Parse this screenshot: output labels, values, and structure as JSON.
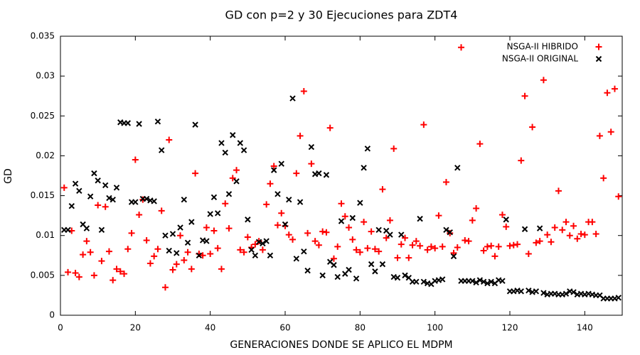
{
  "chart_data": {
    "type": "scatter",
    "title": "GD con p=2 y 30 Ejecuciones para ZDT4",
    "x_label": "GENERACIONES DONDE SE APLICO EL MDPM",
    "y_label": "GD",
    "xlim": [
      0,
      150
    ],
    "ylim": [
      0,
      0.035
    ],
    "xticks": [
      0,
      20,
      40,
      60,
      80,
      100,
      120,
      140
    ],
    "yticks": [
      0,
      0.005,
      0.01,
      0.015,
      0.02,
      0.025,
      0.03,
      0.035
    ],
    "grid": false,
    "legend": "top-right",
    "x": [
      1,
      2,
      3,
      4,
      5,
      6,
      7,
      8,
      9,
      10,
      11,
      12,
      13,
      14,
      15,
      16,
      17,
      18,
      19,
      20,
      21,
      22,
      23,
      24,
      25,
      26,
      27,
      28,
      29,
      30,
      31,
      32,
      33,
      34,
      35,
      36,
      37,
      38,
      39,
      40,
      41,
      42,
      43,
      44,
      45,
      46,
      47,
      48,
      49,
      50,
      51,
      52,
      53,
      54,
      55,
      56,
      57,
      58,
      59,
      60,
      61,
      62,
      63,
      64,
      65,
      66,
      67,
      68,
      69,
      70,
      71,
      72,
      73,
      74,
      75,
      76,
      77,
      78,
      79,
      80,
      81,
      82,
      83,
      84,
      85,
      86,
      87,
      88,
      89,
      90,
      91,
      92,
      93,
      94,
      95,
      96,
      97,
      98,
      99,
      100,
      101,
      102,
      103,
      104,
      105,
      106,
      107,
      108,
      109,
      110,
      111,
      112,
      113,
      114,
      115,
      116,
      117,
      118,
      119,
      120,
      121,
      122,
      123,
      124,
      125,
      126,
      127,
      128,
      129,
      130,
      131,
      132,
      133,
      134,
      135,
      136,
      137,
      138,
      139,
      140,
      141,
      142,
      143,
      144,
      145,
      146,
      147,
      148,
      149
    ],
    "series": [
      {
        "name": "NSGA-II HIBRIDO",
        "color": "#ff0000",
        "marker": "+",
        "values": [
          0.016,
          0.0054,
          0.0106,
          0.0053,
          0.0048,
          0.0076,
          0.0093,
          0.0079,
          0.005,
          0.0138,
          0.0068,
          0.0136,
          0.008,
          0.0044,
          0.0058,
          0.0055,
          0.0052,
          0.0083,
          0.0103,
          0.0195,
          0.0126,
          0.0145,
          0.0094,
          0.0065,
          0.0074,
          0.0083,
          0.0131,
          0.0035,
          0.022,
          0.0057,
          0.0064,
          0.01,
          0.0069,
          0.0079,
          0.0058,
          0.0178,
          0.0077,
          0.0075,
          0.011,
          0.0077,
          0.0106,
          0.0084,
          0.0058,
          0.014,
          0.0109,
          0.0172,
          0.0182,
          0.0082,
          0.0079,
          0.0098,
          0.0085,
          0.0089,
          0.0093,
          0.0082,
          0.0139,
          0.0165,
          0.0187,
          0.0113,
          0.0128,
          0.0112,
          0.0101,
          0.0095,
          0.0178,
          0.0225,
          0.0281,
          0.0103,
          0.019,
          0.0093,
          0.0088,
          0.0105,
          0.0104,
          0.0235,
          0.0071,
          0.0086,
          0.014,
          0.0124,
          0.011,
          0.0095,
          0.0082,
          0.0079,
          0.0117,
          0.0084,
          0.0105,
          0.0083,
          0.008,
          0.0158,
          0.0097,
          0.0119,
          0.0209,
          0.0072,
          0.0089,
          0.0097,
          0.0072,
          0.0088,
          0.0093,
          0.0087,
          0.0239,
          0.0082,
          0.0086,
          0.0084,
          0.0125,
          0.0086,
          0.0167,
          0.0103,
          0.0078,
          0.0085,
          0.0336,
          0.0094,
          0.0093,
          0.0119,
          0.0134,
          0.0215,
          0.0081,
          0.0086,
          0.0087,
          0.0074,
          0.0086,
          0.0126,
          0.0111,
          0.0087,
          0.0088,
          0.0089,
          0.0194,
          0.0275,
          0.0077,
          0.0236,
          0.0091,
          0.0093,
          0.0295,
          0.0101,
          0.0092,
          0.011,
          0.0156,
          0.0107,
          0.0117,
          0.01,
          0.0112,
          0.0096,
          0.0102,
          0.0101,
          0.0117,
          0.0117,
          0.0102,
          0.0225,
          0.0172,
          0.0279,
          0.023,
          0.0284,
          0.0149
        ]
      },
      {
        "name": "NSGA-II ORIGINAL",
        "color": "#000000",
        "marker": "x",
        "values": [
          0.0107,
          0.0107,
          0.0137,
          0.0165,
          0.0156,
          0.0114,
          0.0109,
          0.0149,
          0.0178,
          0.0169,
          0.0107,
          0.0163,
          0.0147,
          0.0145,
          0.016,
          0.0242,
          0.0241,
          0.0241,
          0.0142,
          0.0142,
          0.024,
          0.0146,
          0.0146,
          0.0144,
          0.0143,
          0.0243,
          0.0207,
          0.01,
          0.0081,
          0.0102,
          0.0078,
          0.011,
          0.0145,
          0.0091,
          0.0117,
          0.0239,
          0.0075,
          0.0094,
          0.0093,
          0.0127,
          0.0148,
          0.0128,
          0.0216,
          0.0204,
          0.0152,
          0.0226,
          0.0168,
          0.0216,
          0.0207,
          0.012,
          0.0082,
          0.0075,
          0.0092,
          0.009,
          0.0093,
          0.0075,
          0.0182,
          0.0152,
          0.019,
          0.0114,
          0.0145,
          0.0272,
          0.0071,
          0.0142,
          0.008,
          0.0056,
          0.0211,
          0.0177,
          0.0178,
          0.005,
          0.0176,
          0.0067,
          0.0063,
          0.0048,
          0.0118,
          0.0052,
          0.0057,
          0.0122,
          0.0046,
          0.0141,
          0.0185,
          0.0209,
          0.0064,
          0.0055,
          0.0107,
          0.0064,
          0.0106,
          0.0101,
          0.0048,
          0.0047,
          0.0101,
          0.005,
          0.0047,
          0.0042,
          0.0042,
          0.0121,
          0.0042,
          0.004,
          0.0039,
          0.0043,
          0.0044,
          0.0045,
          0.0107,
          0.0104,
          0.0074,
          0.0185,
          0.0043,
          0.0043,
          0.0043,
          0.0043,
          0.0041,
          0.0044,
          0.0042,
          0.004,
          0.0042,
          0.004,
          0.0044,
          0.0043,
          0.012,
          0.003,
          0.003,
          0.0031,
          0.003,
          0.0108,
          0.0031,
          0.0029,
          0.003,
          0.0109,
          0.0028,
          0.0026,
          0.0027,
          0.0027,
          0.0026,
          0.0026,
          0.0027,
          0.003,
          0.0029,
          0.0026,
          0.0027,
          0.0026,
          0.0027,
          0.0026,
          0.0025,
          0.0025,
          0.0021,
          0.0021,
          0.0021,
          0.0021,
          0.0022
        ]
      }
    ]
  }
}
